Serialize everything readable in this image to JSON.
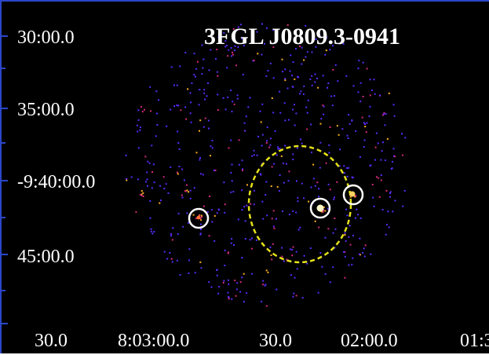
{
  "title": "3FGL J0809.3-0941",
  "dec_labels": [
    "30:00.0",
    "35:00.0",
    "-9:40:00.0",
    "45:00.0"
  ],
  "ra_labels": [
    "30.0",
    "8:03:00.0",
    "30.0",
    "02:00.0",
    "01:3"
  ],
  "colors": {
    "background": "#000000",
    "axis": "#2b46c8",
    "text": "#ffffff",
    "error_ellipse": "#e6e21a",
    "source_circle": "#ffffff",
    "photon_dim": "#5a2cff",
    "photon_mid": "#d42a7a",
    "photon_bright": "#ffb020"
  },
  "overlays": {
    "error_ellipse_style": "dashed",
    "source_circles": 3
  }
}
